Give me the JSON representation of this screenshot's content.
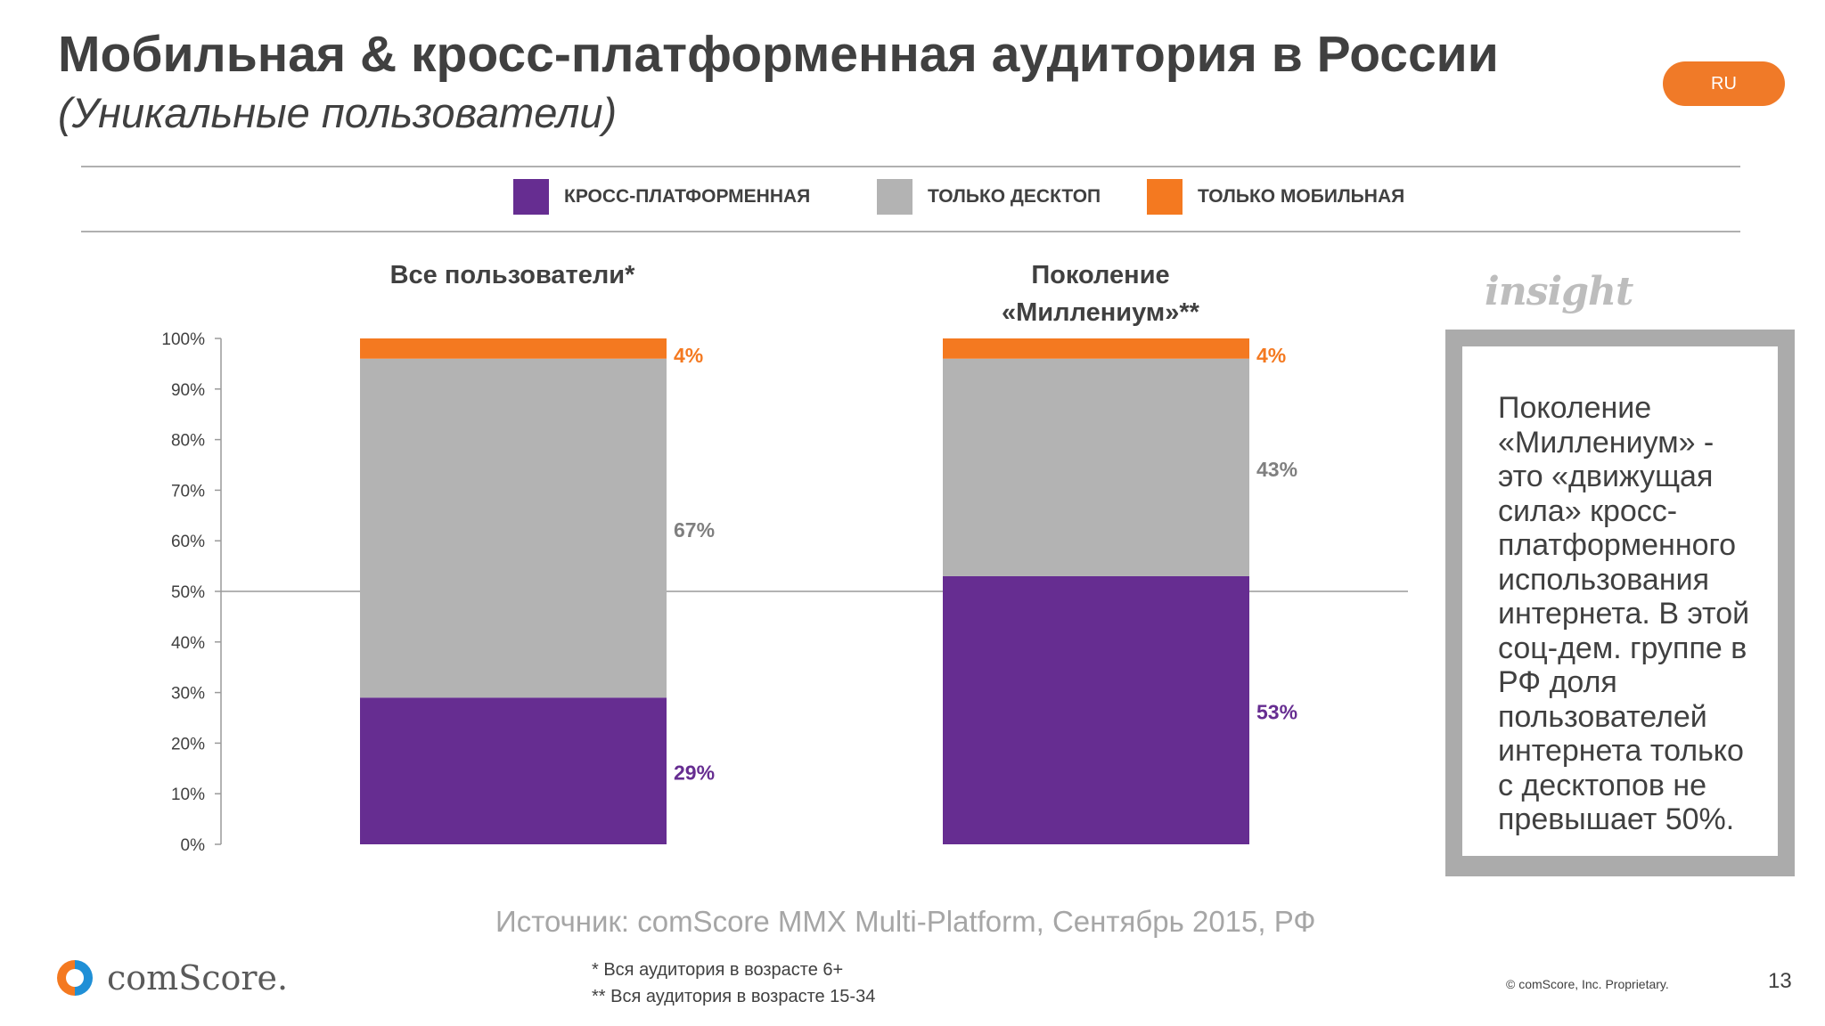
{
  "title": "Мобильная & кросс-платформенная аудитория в России",
  "subtitle": "(Уникальные пользователи)",
  "lang_badge": "RU",
  "colors": {
    "cross_platform": "#662d91",
    "desktop_only": "#b3b3b3",
    "mobile_only": "#f47920",
    "text": "#404040",
    "source_text": "#a6a6a6"
  },
  "legend": [
    {
      "label": "КРОСС-ПЛАТФОРМЕННАЯ",
      "color": "#662d91"
    },
    {
      "label": "ТОЛЬКО ДЕСКТОП",
      "color": "#b3b3b3"
    },
    {
      "label": "ТОЛЬКО МОБИЛЬНАЯ",
      "color": "#f47920"
    }
  ],
  "chart_data": {
    "type": "bar",
    "stacked": true,
    "categories": [
      "Все пользователи*",
      "Поколение «Миллениум»**"
    ],
    "category_lines": [
      [
        "Все пользователи*"
      ],
      [
        "Поколение",
        "«Миллениум»**"
      ]
    ],
    "series": [
      {
        "name": "КРОСС-ПЛАТФОРМЕННАЯ",
        "values": [
          29,
          53
        ],
        "labels": [
          "29%",
          "53%"
        ],
        "color": "#662d91"
      },
      {
        "name": "ТОЛЬКО ДЕСКТОП",
        "values": [
          67,
          43
        ],
        "labels": [
          "67%",
          "43%"
        ],
        "color": "#b3b3b3"
      },
      {
        "name": "ТОЛЬКО МОБИЛЬНАЯ",
        "values": [
          4,
          4
        ],
        "labels": [
          "4%",
          "4%"
        ],
        "color": "#f47920"
      }
    ],
    "ylim": [
      0,
      100
    ],
    "y_ticks": [
      "0%",
      "10%",
      "20%",
      "30%",
      "40%",
      "50%",
      "60%",
      "70%",
      "80%",
      "90%",
      "100%"
    ],
    "reference_line": 50,
    "legend_position": "top",
    "grid": false
  },
  "insight": {
    "heading": "insight",
    "text": "Поколение «Миллениум» - это «движущая сила» кросс-платформенного использования интернета. В этой соц-дем. группе в РФ доля пользователей интернета только с десктопов не превышает 50%."
  },
  "source": "Источник: comScore MMX Multi-Platform, Сентябрь 2015, РФ",
  "footnotes": [
    "* Вся аудитория в возрасте 6+",
    "** Вся аудитория в возрасте 15-34"
  ],
  "logo_text": "comScore.",
  "copyright": "© comScore, Inc. Proprietary.",
  "page_number": "13"
}
